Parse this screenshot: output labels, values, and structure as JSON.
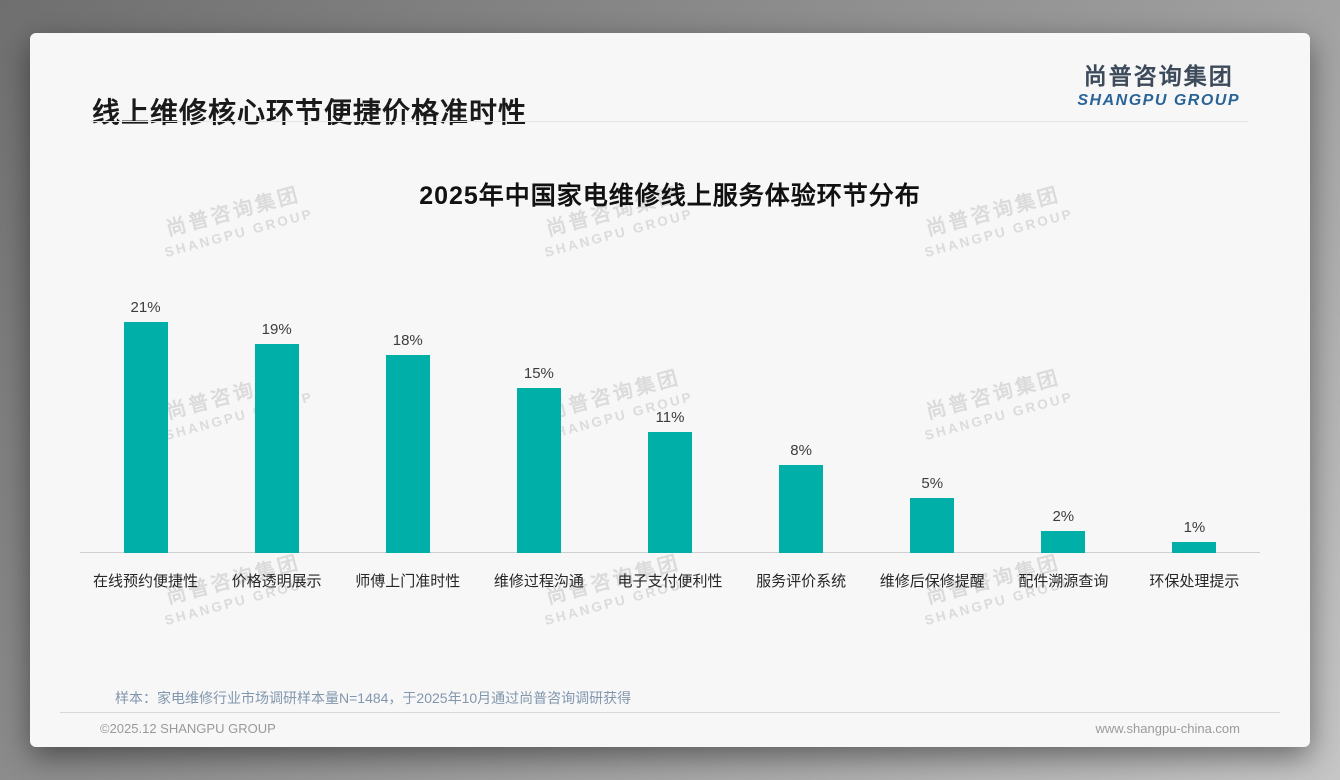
{
  "page": {
    "title": "线上维修核心环节便捷价格准时性",
    "logo": {
      "cn": "尚普咨询集团",
      "en": "SHANGPU GROUP"
    },
    "watermark": {
      "cn": "尚普咨询集团",
      "en": "SHANGPU GROUP"
    },
    "note": "样本：家电维修行业市场调研样本量N=1484，于2025年10月通过尚普咨询调研获得",
    "footer": {
      "left": "©2025.12 SHANGPU GROUP",
      "right": "www.shangpu-china.com"
    }
  },
  "colors": {
    "bar": "#00b0a8",
    "slide_background": "#f7f7f8",
    "logo_cn": "#3d4a5a",
    "logo_en": "#2a6496",
    "note_text": "#8296ad"
  },
  "chart_data": {
    "type": "bar",
    "title": "2025年中国家电维修线上服务体验环节分布",
    "categories": [
      "在线预约便捷性",
      "价格透明展示",
      "师傅上门准时性",
      "维修过程沟通",
      "电子支付便利性",
      "服务评价系统",
      "维修后保修提醒",
      "配件溯源查询",
      "环保处理提示"
    ],
    "values": [
      21,
      19,
      18,
      15,
      11,
      8,
      5,
      2,
      1
    ],
    "value_labels": [
      "21%",
      "19%",
      "18%",
      "15%",
      "11%",
      "8%",
      "5%",
      "2%",
      "1%"
    ],
    "unit": "%",
    "xlabel": "",
    "ylabel": "",
    "ylim": [
      0,
      23
    ],
    "grid": false,
    "legend": "none",
    "value_label_position": "above-bar",
    "bar_color": "#00b0a8"
  }
}
